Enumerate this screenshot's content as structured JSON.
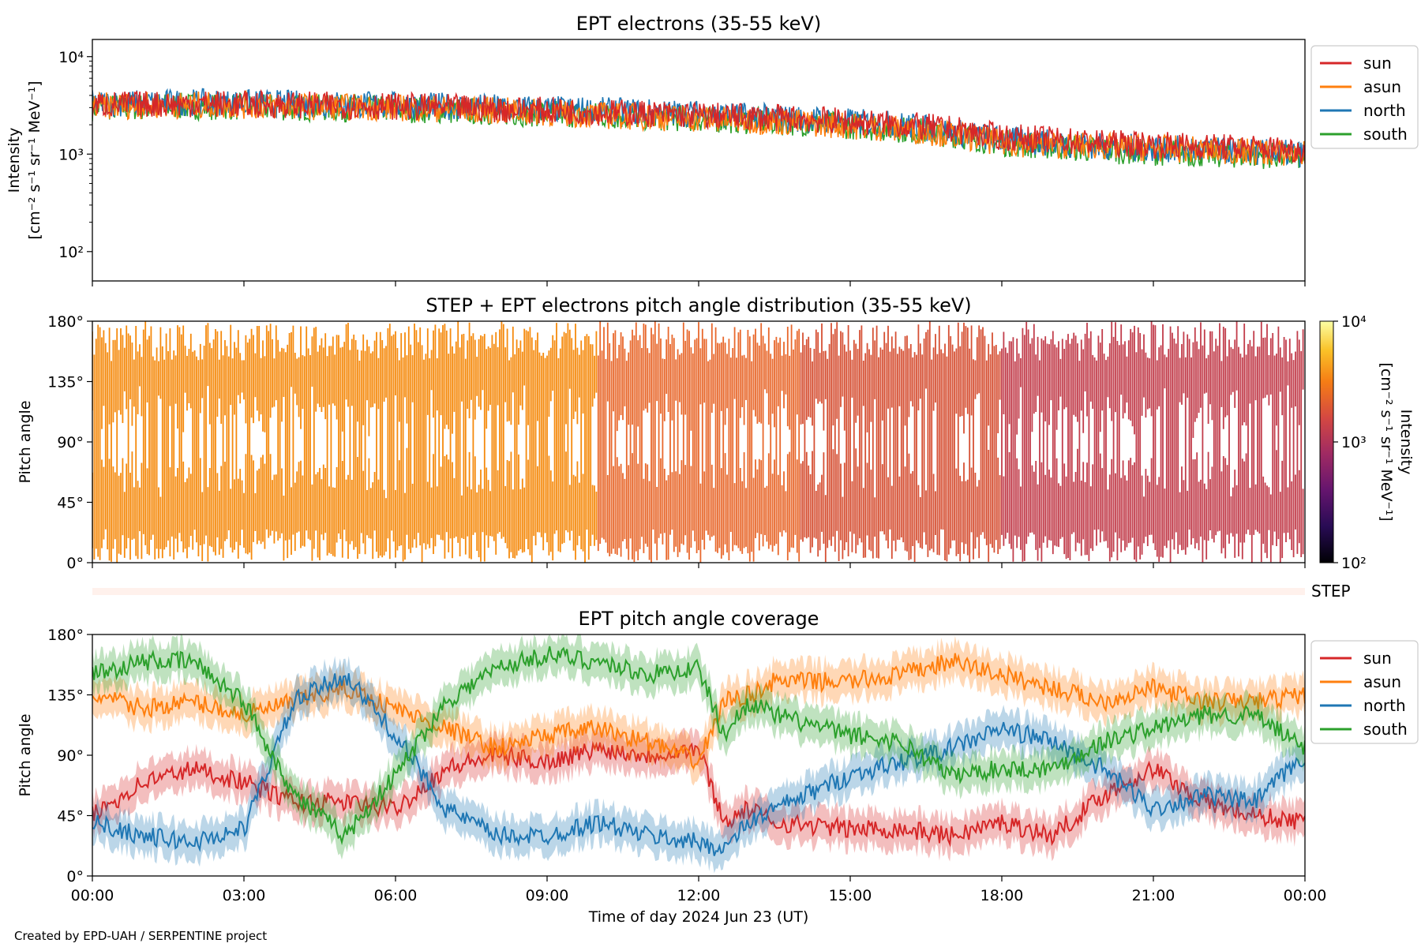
{
  "credit": "Created by EPD-UAH / SERPENTINE project",
  "colors": {
    "sun": "#d62728",
    "asun": "#ff7f0e",
    "north": "#1f77b4",
    "south": "#2ca02c",
    "step_strip": "#fff1ec"
  },
  "chart_data": [
    {
      "type": "line",
      "title": "EPT electrons (35-55 keV)",
      "ylabel": "Intensity",
      "ylabel_units": "[cm⁻² s⁻¹ sr⁻¹ MeV⁻¹]",
      "yscale": "log",
      "ylim": [
        50,
        15000
      ],
      "y_ticks": [
        100,
        1000,
        10000
      ],
      "y_tick_labels": [
        "10²",
        "10³",
        "10⁴"
      ],
      "x_range_hours": [
        0,
        24
      ],
      "legend": [
        "sun",
        "asun",
        "north",
        "south"
      ],
      "legend_position": "outside-right-top",
      "series": [
        {
          "name": "sun",
          "x": [
            0,
            2,
            4,
            6,
            8,
            10,
            12,
            14,
            16,
            17,
            18,
            20,
            22,
            24
          ],
          "values": [
            3200,
            3300,
            3200,
            3100,
            2900,
            2700,
            2500,
            2300,
            2000,
            1800,
            1500,
            1300,
            1200,
            1100
          ]
        },
        {
          "name": "asun",
          "x": [
            0,
            2,
            4,
            6,
            8,
            10,
            12,
            14,
            16,
            17,
            18,
            20,
            22,
            24
          ],
          "values": [
            3100,
            3200,
            3100,
            3000,
            2800,
            2500,
            2300,
            2100,
            1800,
            1600,
            1300,
            1200,
            1100,
            1000
          ]
        },
        {
          "name": "north",
          "x": [
            0,
            2,
            4,
            6,
            8,
            10,
            12,
            14,
            16,
            17,
            18,
            20,
            22,
            24
          ],
          "values": [
            3300,
            3400,
            3300,
            3200,
            3000,
            2800,
            2600,
            2300,
            2000,
            1700,
            1400,
            1200,
            1100,
            1000
          ]
        },
        {
          "name": "south",
          "x": [
            0,
            2,
            4,
            6,
            8,
            10,
            12,
            14,
            16,
            17,
            18,
            20,
            22,
            24
          ],
          "values": [
            3000,
            3100,
            3000,
            2900,
            2700,
            2500,
            2300,
            2100,
            1800,
            1600,
            1300,
            1100,
            1000,
            950
          ]
        }
      ]
    },
    {
      "type": "heatmap",
      "title": "STEP + EPT electrons pitch angle distribution (35-55 keV)",
      "ylabel": "Pitch angle",
      "ylim": [
        0,
        180
      ],
      "y_tick_labels": [
        "0°",
        "45°",
        "90°",
        "135°",
        "180°"
      ],
      "x_range_hours": [
        0,
        24
      ],
      "colorbar": {
        "label": "Intensity",
        "units": "[cm⁻² s⁻¹ sr⁻¹ MeV⁻¹]",
        "scale": "log",
        "range": [
          100,
          10000
        ],
        "tick_labels": [
          "10²",
          "10³",
          "10⁴"
        ],
        "colormap": "inferno"
      },
      "step_label": "STEP"
    },
    {
      "type": "line",
      "title": "EPT pitch angle coverage",
      "ylabel": "Pitch angle",
      "ylim": [
        0,
        180
      ],
      "y_tick_labels": [
        "0°",
        "45°",
        "90°",
        "135°",
        "180°"
      ],
      "xlabel": "Time of day 2024 Jun 23 (UT)",
      "x_tick_labels": [
        "00:00",
        "03:00",
        "06:00",
        "09:00",
        "12:00",
        "15:00",
        "18:00",
        "21:00",
        "00:00"
      ],
      "x_range_hours": [
        0,
        24
      ],
      "legend": [
        "sun",
        "asun",
        "north",
        "south"
      ],
      "legend_position": "outside-right-top",
      "series": [
        {
          "name": "sun",
          "x": [
            0,
            1,
            2,
            3,
            4,
            5,
            6,
            7,
            8,
            9,
            10,
            11,
            12,
            12.5,
            13,
            13.5,
            15,
            16,
            17,
            18,
            19,
            20,
            21,
            22,
            23,
            24
          ],
          "values": [
            45,
            70,
            80,
            70,
            55,
            55,
            50,
            80,
            90,
            85,
            95,
            90,
            95,
            40,
            50,
            40,
            35,
            35,
            30,
            40,
            30,
            60,
            80,
            55,
            45,
            40
          ]
        },
        {
          "name": "asun",
          "x": [
            0,
            1,
            2,
            3,
            4,
            5,
            6,
            7,
            8,
            9,
            10,
            11,
            12,
            12.5,
            13,
            13.5,
            15,
            16,
            17,
            18,
            19,
            20,
            21,
            22,
            23,
            24
          ],
          "values": [
            135,
            125,
            130,
            120,
            130,
            140,
            125,
            110,
            95,
            105,
            110,
            100,
            85,
            130,
            135,
            145,
            145,
            150,
            160,
            150,
            140,
            130,
            140,
            130,
            130,
            135
          ]
        },
        {
          "name": "north",
          "x": [
            0,
            1,
            2,
            3,
            4,
            5,
            6,
            7,
            8,
            9,
            10,
            11,
            12,
            12.5,
            13,
            13.5,
            15,
            16,
            17,
            18,
            19,
            20,
            21,
            22,
            23,
            24
          ],
          "values": [
            40,
            30,
            25,
            35,
            130,
            150,
            105,
            50,
            30,
            30,
            40,
            30,
            25,
            20,
            40,
            50,
            75,
            85,
            95,
            110,
            100,
            80,
            50,
            60,
            55,
            90
          ]
        },
        {
          "name": "south",
          "x": [
            0,
            1,
            2,
            3,
            4,
            5,
            6,
            7,
            8,
            9,
            10,
            11,
            12,
            12.5,
            13,
            13.5,
            15,
            16,
            17,
            18,
            19,
            20,
            21,
            22,
            23,
            24
          ],
          "values": [
            150,
            160,
            160,
            130,
            60,
            30,
            75,
            130,
            155,
            165,
            160,
            150,
            155,
            105,
            130,
            120,
            105,
            100,
            75,
            80,
            80,
            100,
            110,
            120,
            120,
            95
          ]
        }
      ]
    }
  ]
}
